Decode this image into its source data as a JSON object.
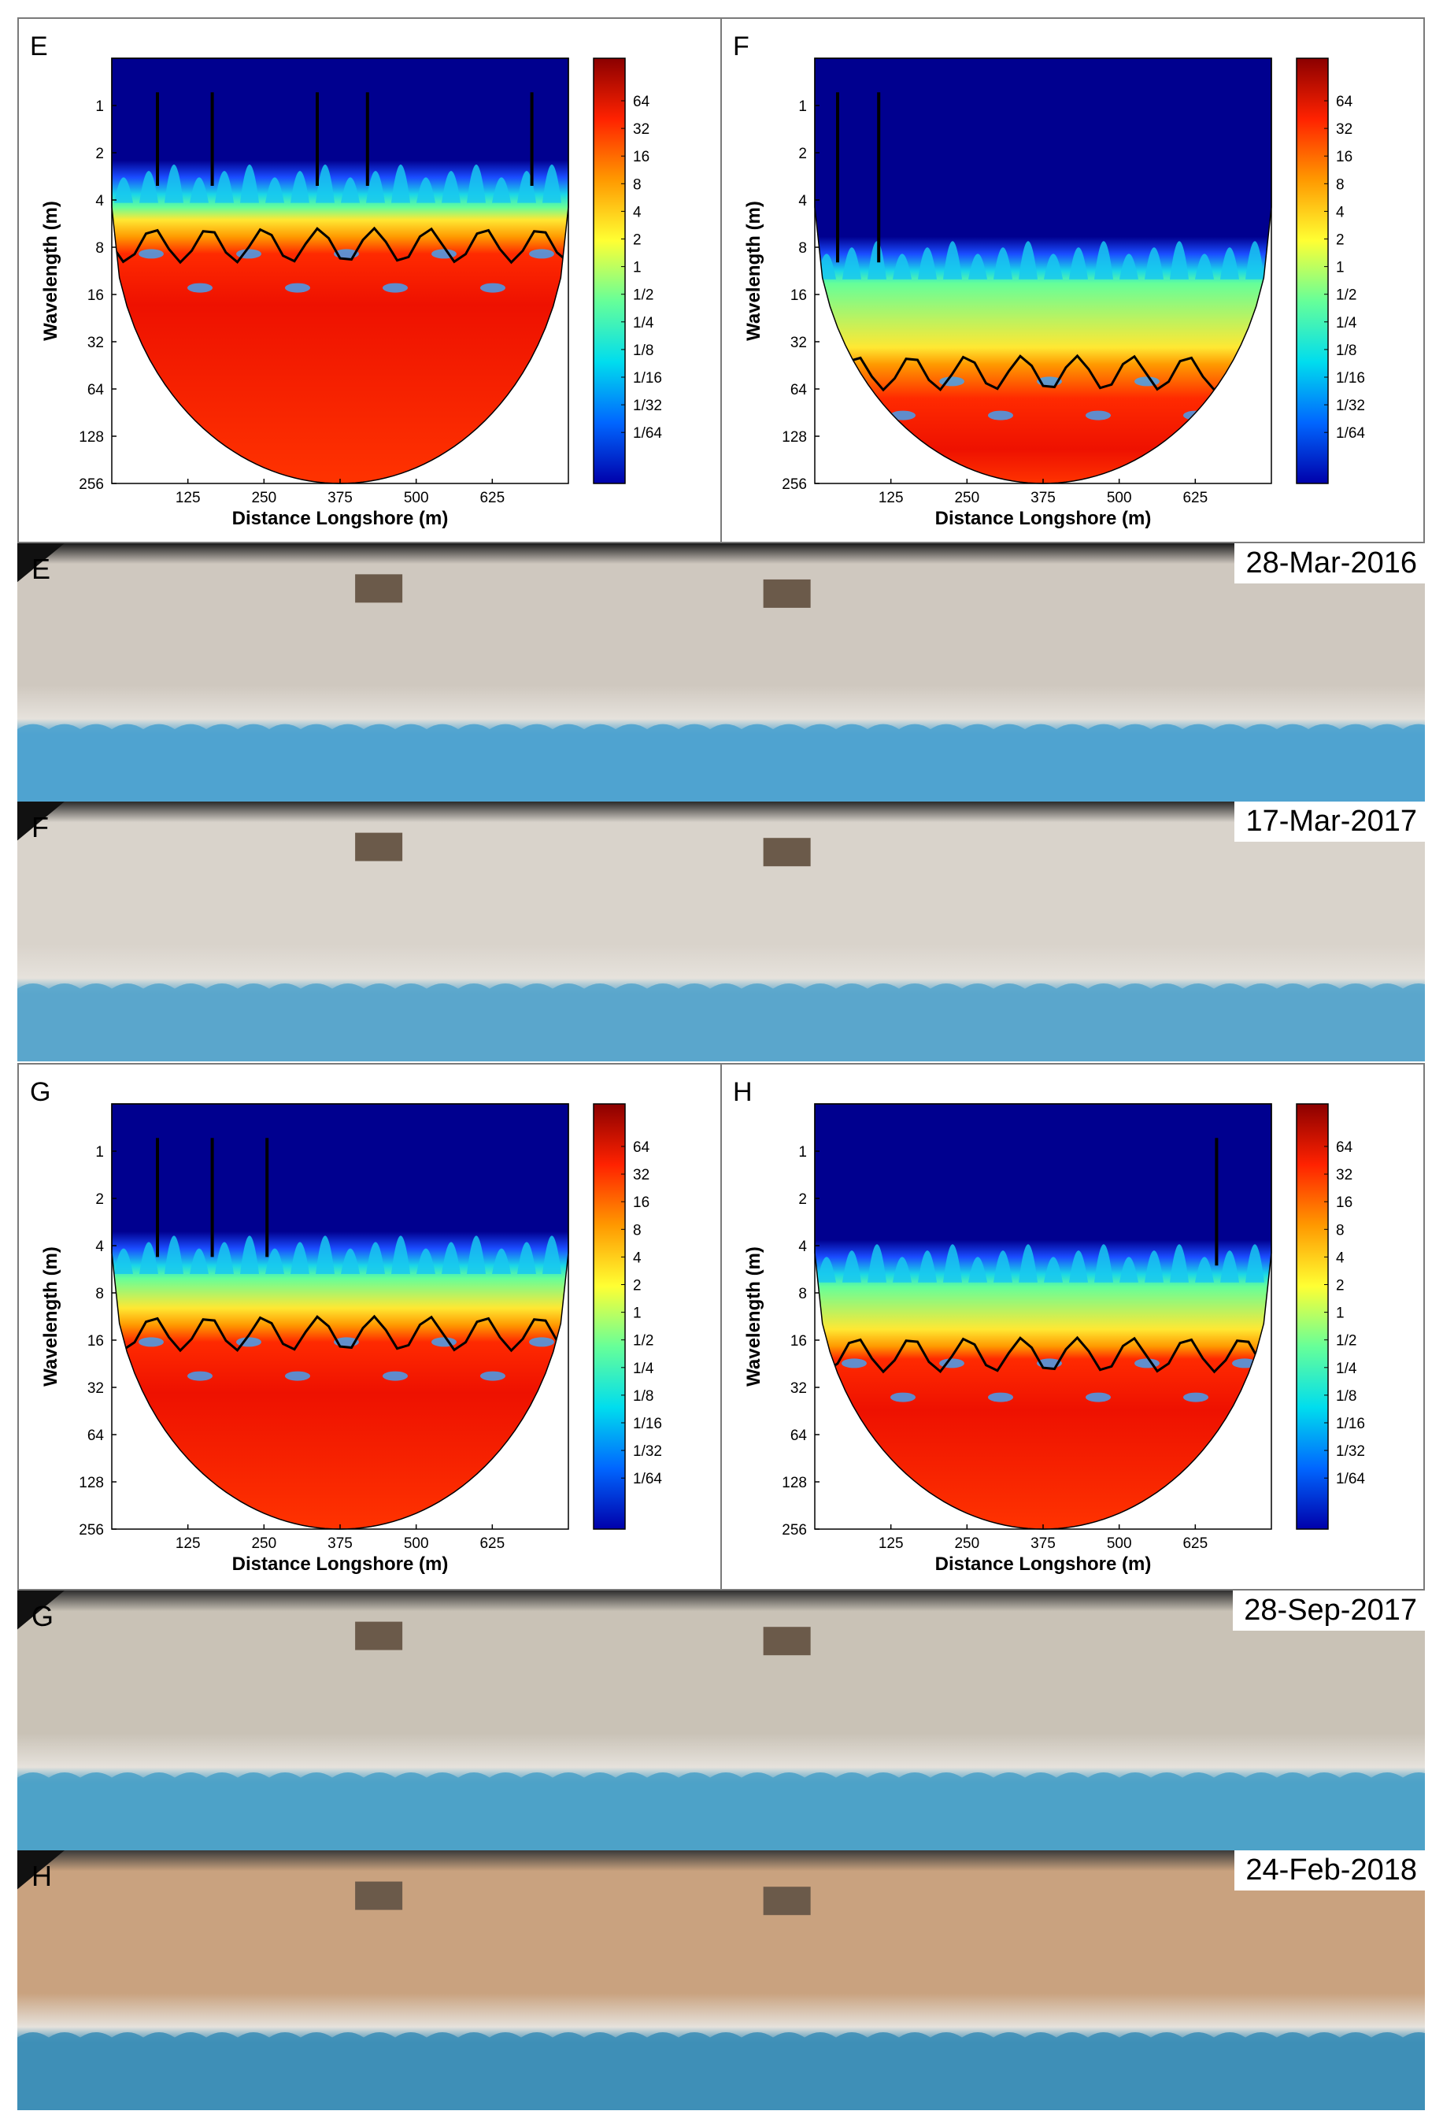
{
  "scalograms": [
    {
      "label": "E",
      "variant": "E"
    },
    {
      "label": "F",
      "variant": "F"
    },
    {
      "label": "G",
      "variant": "G"
    },
    {
      "label": "H",
      "variant": "H"
    }
  ],
  "axes": {
    "ylabel": "Wavelength (m)",
    "xlabel": "Distance Longshore (m)",
    "yticks": [
      "1",
      "2",
      "4",
      "8",
      "16",
      "32",
      "64",
      "128",
      "256"
    ],
    "xticks": [
      "125",
      "250",
      "375",
      "500",
      "625"
    ],
    "xlim": [
      0,
      750
    ],
    "ylim_log2": [
      -1,
      8
    ]
  },
  "colorbar": {
    "ticks": [
      "64",
      "32",
      "16",
      "8",
      "4",
      "2",
      "1",
      "1/2",
      "1/4",
      "1/8",
      "1/16",
      "1/32",
      "1/64"
    ],
    "colors": [
      "#8b0000",
      "#ff2200",
      "#ff9900",
      "#ffff33",
      "#66ff99",
      "#00ddee",
      "#0066ff",
      "#0000aa"
    ]
  },
  "photos": [
    {
      "label": "E",
      "date": "28-Mar-2016",
      "palette": {
        "sky": "#1a1a1a",
        "sand": "#cfc8bf",
        "water": "#4fa3cf"
      }
    },
    {
      "label": "F",
      "date": "17-Mar-2017",
      "palette": {
        "sky": "#2a2a2a",
        "sand": "#d9d3cb",
        "water": "#5aa6cc"
      }
    },
    {
      "label": "G",
      "date": "28-Sep-2017",
      "palette": {
        "sky": "#2e2e2e",
        "sand": "#c9c2b6",
        "water": "#4ea2c8"
      }
    },
    {
      "label": "H",
      "date": "24-Feb-2018",
      "palette": {
        "sky": "#3a3a3a",
        "sand": "#c9a27f",
        "water": "#3e8fb7"
      }
    }
  ]
}
